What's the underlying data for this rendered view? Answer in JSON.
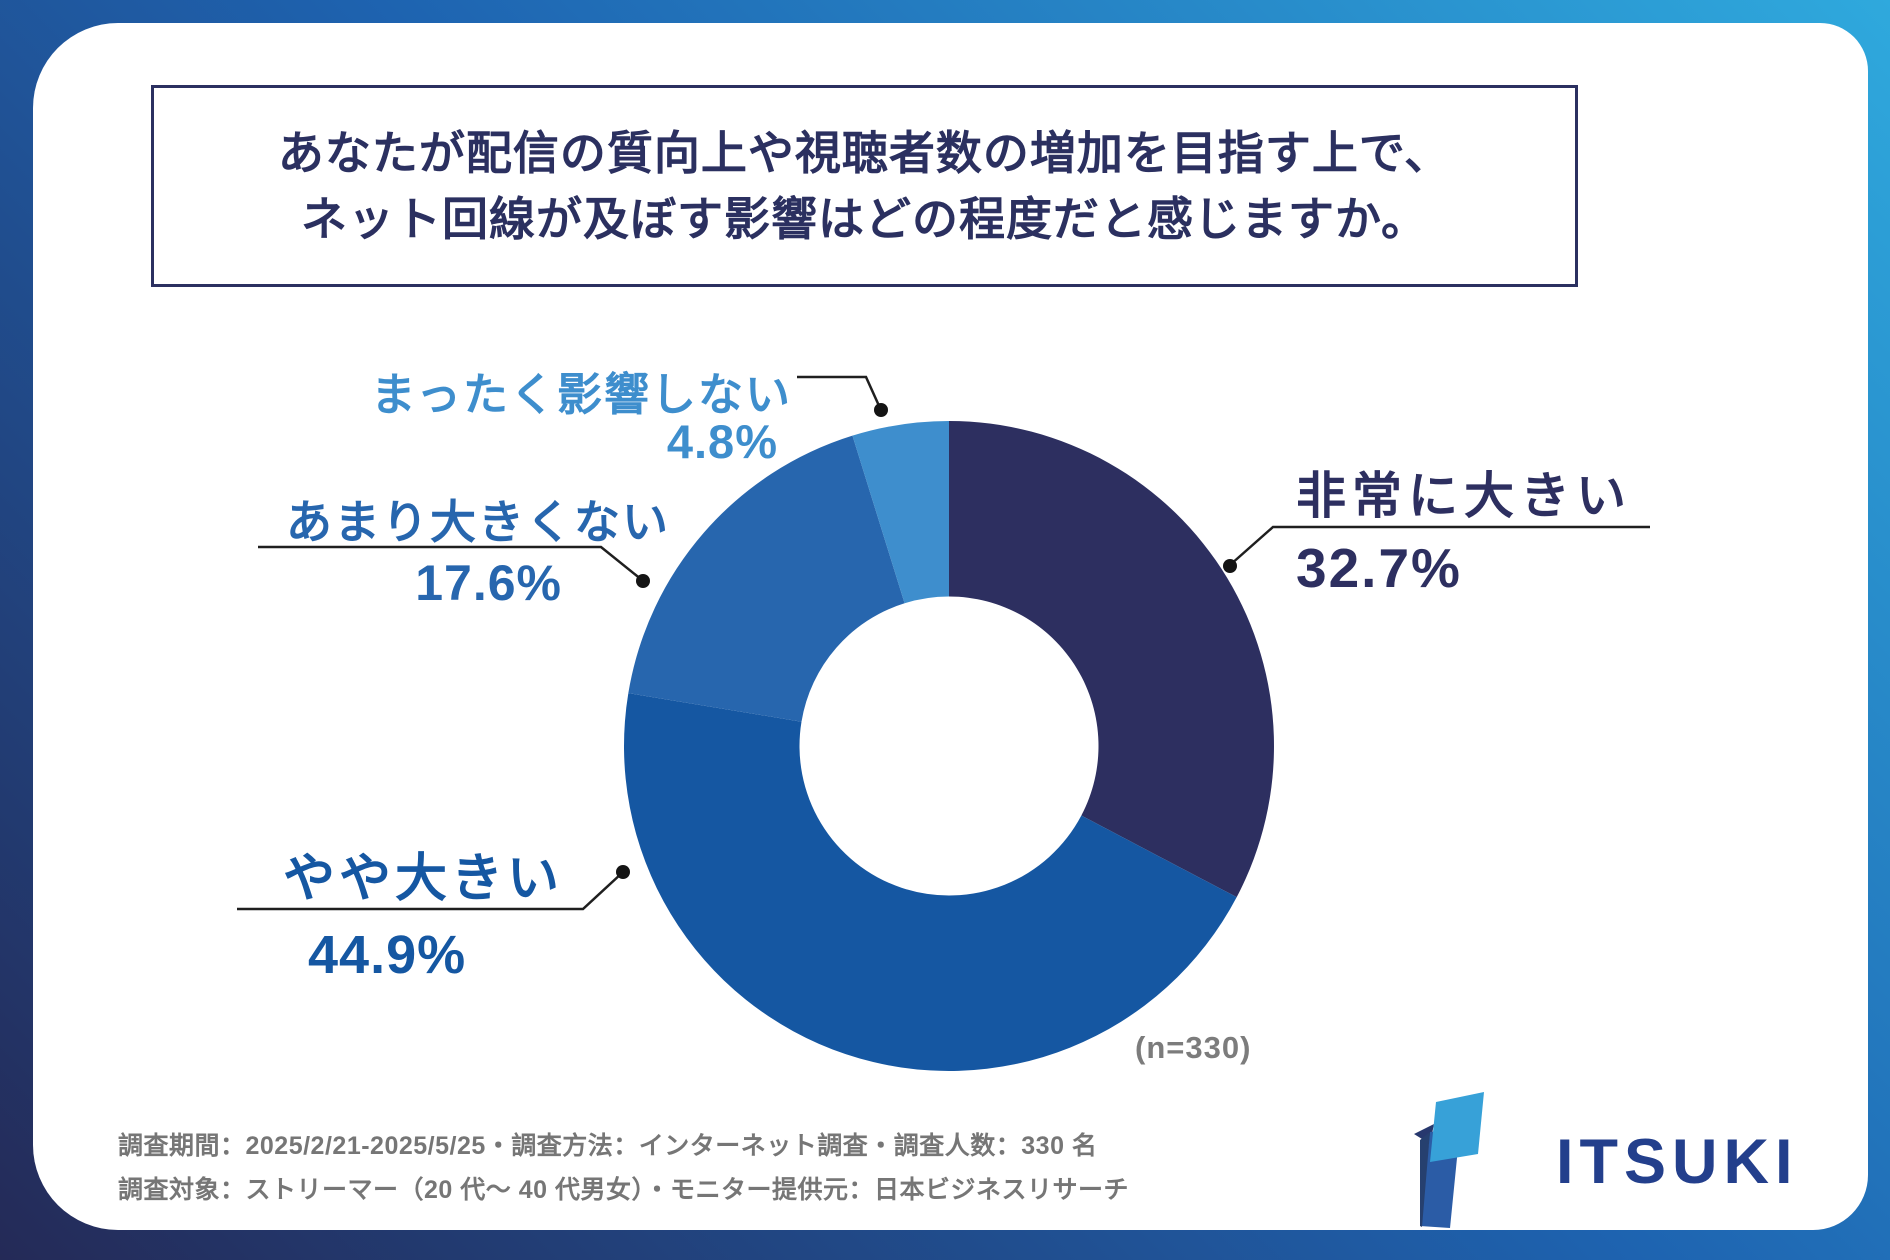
{
  "title": {
    "line1": "あなたが配信の質向上や視聴者数の増加を目指す上で、",
    "line2": "ネット回線が及ぼす影響はどの程度だと感じますか。"
  },
  "chart_data": {
    "type": "pie",
    "title": "あなたが配信の質向上や視聴者数の増加を目指す上で、ネット回線が及ぼす影響はどの程度だと感じますか。",
    "sample_label": "(n=330)",
    "direction": "clockwise",
    "start_angle_deg": 0,
    "donut_hole_ratio": 0.46,
    "segments": [
      {
        "label": "非常に大きい",
        "value": 32.7,
        "display": "32.7%",
        "color": "#2d2f60"
      },
      {
        "label": "やや大きい",
        "value": 44.9,
        "display": "44.9%",
        "color": "#1557a2"
      },
      {
        "label": "あまり大きくない",
        "value": 17.6,
        "display": "17.6%",
        "color": "#2766ae"
      },
      {
        "label": "まったく影響しない",
        "value": 4.8,
        "display": "4.8%",
        "color": "#3e8ecd"
      }
    ]
  },
  "footer": {
    "line1": "調査期間：2025/2/21-2025/5/25・調査方法：インターネット調査・調査人数：330 名",
    "line2": "調査対象：ストリーマー（20 代〜 40 代男女）・モニター提供元：日本ビジネスリサーチ"
  },
  "logo": {
    "text": "ITSUKI"
  },
  "colors": {
    "frame_gradient_top_right": "#2fa9dd",
    "frame_gradient_middle": "#1e63b0",
    "frame_gradient_bottom_left": "#242a57",
    "title_navy": "#2b3060",
    "muted_gray": "#767676",
    "leader_line": "#1f1f1f",
    "logo_navy": "#233f8c",
    "logo_light_blue": "#37a1d8",
    "logo_mid_blue": "#2b5ca6"
  }
}
